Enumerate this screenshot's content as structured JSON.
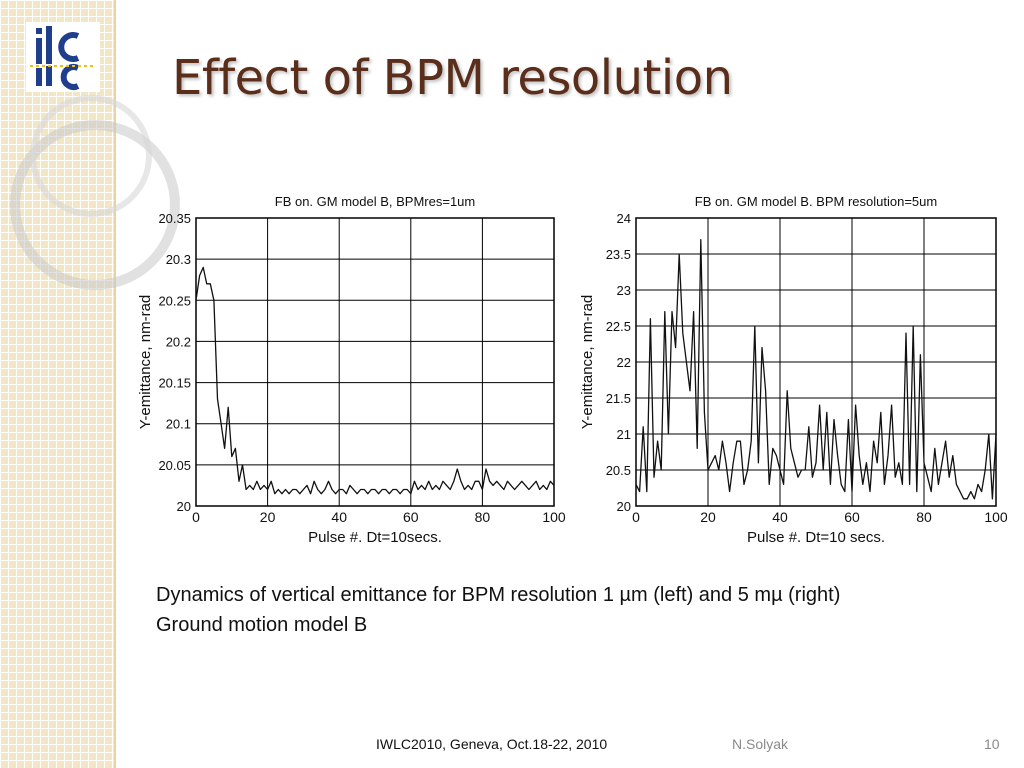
{
  "slide": {
    "title": "Effect of BPM resolution",
    "caption_line1": "Dynamics of vertical emittance for BPM resolution 1 µm (left) and 5 mµ (right)",
    "caption_line2": "Ground motion model B",
    "footer_event": "IWLC2010, Geneva, Oct.18-22, 2010",
    "footer_author": "N.Solyak",
    "page_number": "10",
    "logo_text": "ilc",
    "colors": {
      "title": "#5a2e1a",
      "sidebar": "#f2e6c4",
      "logo_blue": "#1f3e8c",
      "logo_yellow": "#e8c020"
    }
  },
  "chart_data": [
    {
      "type": "line",
      "title": "FB on. GM model B, BPMres=1um",
      "xlabel": "Pulse #. Dt=10secs.",
      "ylabel": "Y-emittance, nm-rad",
      "xlim": [
        0,
        100
      ],
      "ylim": [
        20,
        20.35
      ],
      "xticks": [
        0,
        20,
        40,
        60,
        80,
        100
      ],
      "yticks": [
        20,
        20.05,
        20.1,
        20.15,
        20.2,
        20.25,
        20.3,
        20.35
      ],
      "ytick_labels": [
        "20",
        "20.05",
        "20.1",
        "20.15",
        "20.2",
        "20.25",
        "20.3",
        "20.35"
      ],
      "grid": true,
      "series": [
        {
          "x": [
            0,
            1,
            2,
            3,
            4,
            5,
            6,
            7,
            8,
            9,
            10,
            11,
            12,
            13,
            14,
            15,
            16,
            17,
            18,
            19,
            20,
            21,
            22,
            23,
            24,
            25,
            26,
            27,
            28,
            29,
            30,
            31,
            32,
            33,
            34,
            35,
            36,
            37,
            38,
            39,
            40,
            41,
            42,
            43,
            44,
            45,
            46,
            47,
            48,
            49,
            50,
            51,
            52,
            53,
            54,
            55,
            56,
            57,
            58,
            59,
            60,
            61,
            62,
            63,
            64,
            65,
            66,
            67,
            68,
            69,
            70,
            71,
            72,
            73,
            74,
            75,
            76,
            77,
            78,
            79,
            80,
            81,
            82,
            83,
            84,
            85,
            86,
            87,
            88,
            89,
            90,
            91,
            92,
            93,
            94,
            95,
            96,
            97,
            98,
            99,
            100
          ],
          "y": [
            20.25,
            20.28,
            20.29,
            20.27,
            20.27,
            20.25,
            20.13,
            20.1,
            20.07,
            20.12,
            20.06,
            20.07,
            20.03,
            20.05,
            20.02,
            20.025,
            20.02,
            20.03,
            20.02,
            20.025,
            20.02,
            20.03,
            20.015,
            20.02,
            20.015,
            20.02,
            20.015,
            20.02,
            20.02,
            20.015,
            20.02,
            20.025,
            20.015,
            20.03,
            20.02,
            20.015,
            20.02,
            20.03,
            20.02,
            20.015,
            20.02,
            20.02,
            20.015,
            20.025,
            20.02,
            20.015,
            20.02,
            20.02,
            20.015,
            20.02,
            20.02,
            20.015,
            20.02,
            20.02,
            20.015,
            20.02,
            20.02,
            20.015,
            20.02,
            20.02,
            20.015,
            20.03,
            20.02,
            20.025,
            20.02,
            20.03,
            20.02,
            20.025,
            20.02,
            20.03,
            20.025,
            20.02,
            20.03,
            20.045,
            20.03,
            20.02,
            20.025,
            20.02,
            20.03,
            20.03,
            20.02,
            20.045,
            20.03,
            20.025,
            20.03,
            20.025,
            20.02,
            20.03,
            20.025,
            20.02,
            20.025,
            20.03,
            20.025,
            20.02,
            20.025,
            20.03,
            20.02,
            20.025,
            20.02,
            20.03,
            20.025
          ]
        }
      ]
    },
    {
      "type": "line",
      "title": "FB on. GM model B. BPM resolution=5um",
      "xlabel": "Pulse #. Dt=10 secs.",
      "ylabel": "Y-emittance, nm-rad",
      "xlim": [
        0,
        100
      ],
      "ylim": [
        20,
        24
      ],
      "xticks": [
        0,
        20,
        40,
        60,
        80,
        100
      ],
      "yticks": [
        20,
        20.5,
        21,
        21.5,
        22,
        22.5,
        23,
        23.5,
        24
      ],
      "ytick_labels": [
        "20",
        "20.5",
        "21",
        "21.5",
        "22",
        "22.5",
        "23",
        "23.5",
        "24"
      ],
      "grid": true,
      "series": [
        {
          "x": [
            0,
            1,
            2,
            3,
            4,
            5,
            6,
            7,
            8,
            9,
            10,
            11,
            12,
            13,
            14,
            15,
            16,
            17,
            18,
            19,
            20,
            21,
            22,
            23,
            24,
            25,
            26,
            27,
            28,
            29,
            30,
            31,
            32,
            33,
            34,
            35,
            36,
            37,
            38,
            39,
            40,
            41,
            42,
            43,
            44,
            45,
            46,
            47,
            48,
            49,
            50,
            51,
            52,
            53,
            54,
            55,
            56,
            57,
            58,
            59,
            60,
            61,
            62,
            63,
            64,
            65,
            66,
            67,
            68,
            69,
            70,
            71,
            72,
            73,
            74,
            75,
            76,
            77,
            78,
            79,
            80,
            81,
            82,
            83,
            84,
            85,
            86,
            87,
            88,
            89,
            90,
            91,
            92,
            93,
            94,
            95,
            96,
            97,
            98,
            99,
            100
          ],
          "y": [
            20.3,
            20.2,
            21.1,
            20.2,
            22.6,
            20.4,
            20.9,
            20.5,
            22.7,
            21.0,
            22.7,
            22.2,
            23.5,
            22.4,
            22.0,
            21.6,
            22.7,
            20.8,
            23.7,
            21.3,
            20.5,
            20.6,
            20.7,
            20.5,
            20.9,
            20.6,
            20.2,
            20.6,
            20.9,
            20.9,
            20.3,
            20.5,
            20.9,
            22.5,
            20.6,
            22.2,
            21.6,
            20.3,
            20.8,
            20.7,
            20.5,
            20.3,
            21.6,
            20.8,
            20.6,
            20.4,
            20.5,
            20.5,
            21.1,
            20.4,
            20.6,
            21.4,
            20.5,
            21.3,
            20.3,
            21.2,
            20.7,
            20.3,
            20.2,
            21.2,
            20.2,
            21.4,
            20.7,
            20.3,
            20.6,
            20.2,
            20.9,
            20.6,
            21.3,
            20.3,
            20.7,
            21.4,
            20.4,
            20.6,
            20.3,
            22.4,
            20.3,
            22.5,
            20.2,
            22.1,
            20.6,
            20.4,
            20.2,
            20.8,
            20.3,
            20.6,
            20.9,
            20.4,
            20.7,
            20.3,
            20.2,
            20.1,
            20.1,
            20.2,
            20.1,
            20.3,
            20.2,
            20.5,
            21.0,
            20.1,
            21.0
          ]
        }
      ]
    }
  ]
}
